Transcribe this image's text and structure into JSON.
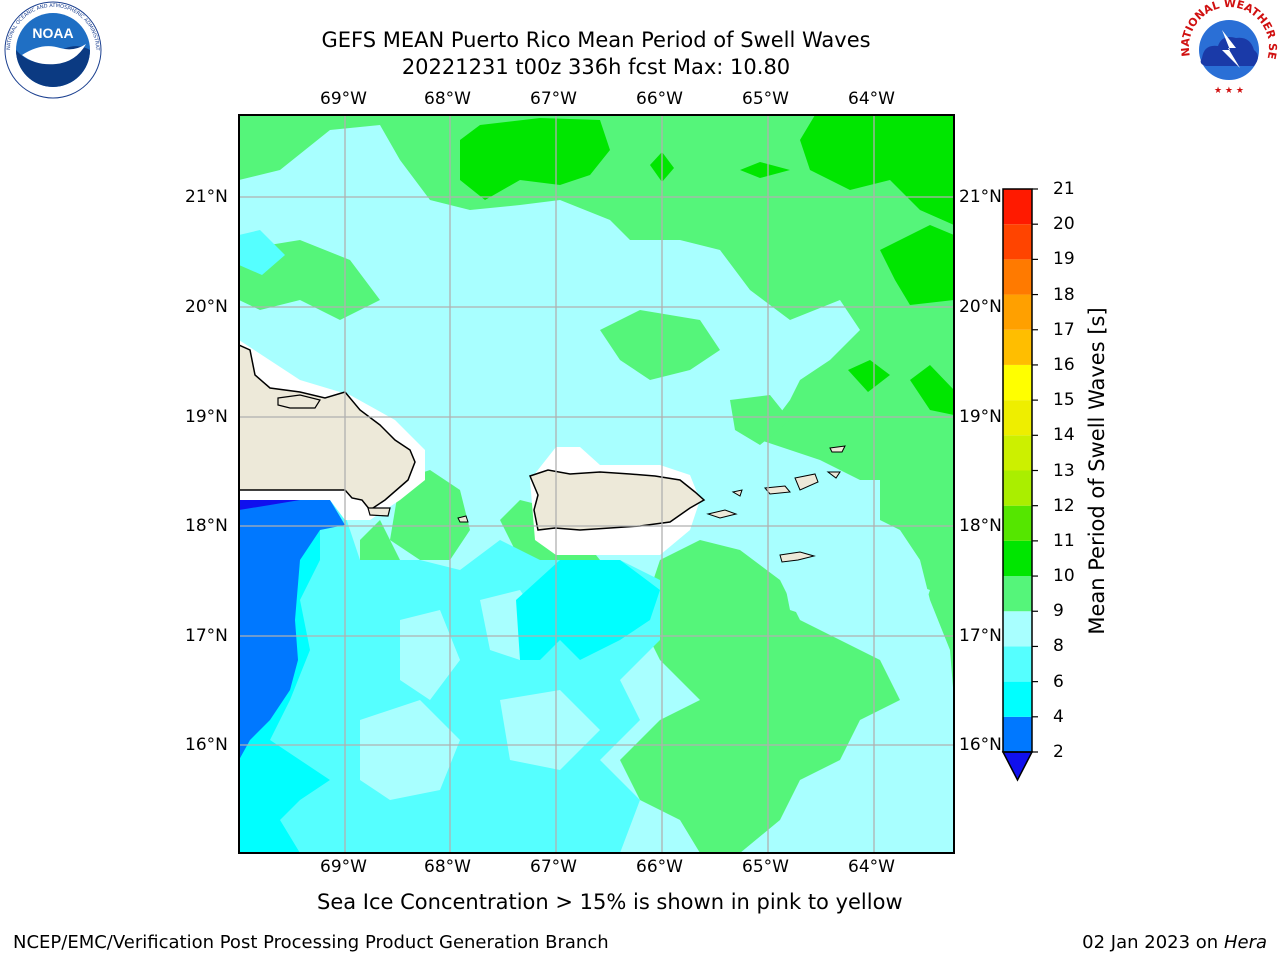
{
  "title": {
    "line1": "GEFS MEAN Puerto Rico Mean Period of Swell Waves",
    "line2": "20221231 t00z 336h fcst   Max: 10.80"
  },
  "logos": {
    "left": {
      "name": "noaa-logo",
      "text": "NOAA",
      "ring_text": "NATIONAL OCEANIC AND ATMOSPHERIC ADMINISTRATION · U.S. DEPARTMENT OF COMMERCE"
    },
    "right": {
      "name": "nws-logo",
      "ring_text": "NATIONAL WEATHER SERVICE"
    }
  },
  "map": {
    "lon_labels": [
      "69°W",
      "68°W",
      "67°W",
      "66°W",
      "65°W",
      "64°W"
    ],
    "lat_labels": [
      "21°N",
      "20°N",
      "19°N",
      "18°N",
      "17°N",
      "16°N"
    ],
    "colors": {
      "land": "#ede9d9",
      "coast": "#000000",
      "grid": "#b0b0b0",
      "frame": "#000000"
    }
  },
  "colorbar": {
    "label": "Mean Period of Swell Waves [s]",
    "ticks": [
      "21",
      "20",
      "19",
      "18",
      "17",
      "16",
      "15",
      "14",
      "13",
      "12",
      "11",
      "10",
      "9",
      "8",
      "6",
      "4",
      "2"
    ],
    "levels": [
      {
        "range": "2-4",
        "color": "#0078ff"
      },
      {
        "range": "4-6",
        "color": "#00ffff"
      },
      {
        "range": "6-8",
        "color": "#55ffff"
      },
      {
        "range": "8-9",
        "color": "#a8ffff"
      },
      {
        "range": "9-10",
        "color": "#55f57a"
      },
      {
        "range": "10-11",
        "color": "#00e600"
      },
      {
        "range": "11-12",
        "color": "#55e600"
      },
      {
        "range": "12-13",
        "color": "#aaee00"
      },
      {
        "range": "13-14",
        "color": "#ccf000"
      },
      {
        "range": "14-15",
        "color": "#eeee00"
      },
      {
        "range": "15-16",
        "color": "#ffff00"
      },
      {
        "range": "16-17",
        "color": "#ffbe00"
      },
      {
        "range": "17-18",
        "color": "#ffa000"
      },
      {
        "range": "18-19",
        "color": "#ff7a00"
      },
      {
        "range": "19-20",
        "color": "#ff4400"
      },
      {
        "range": "20-21",
        "color": "#ff1a00"
      }
    ],
    "under_color": "#1010ee"
  },
  "note": "Sea Ice Concentration > 15% is shown in pink to yellow",
  "footer": {
    "left": "NCEP/EMC/Verification Post Processing Product Generation Branch",
    "date": "02 Jan 2023 on ",
    "machine": "Hera"
  }
}
